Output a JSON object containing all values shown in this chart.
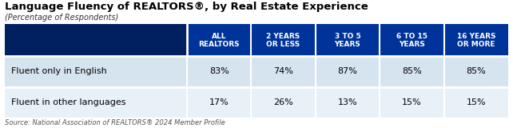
{
  "title": "Language Fluency of REALTORS®, by Real Estate Experience",
  "subtitle": "(Percentage of Respondents)",
  "source": "Source: National Association of REALTORS® 2024 Member Profile",
  "col_headers": [
    [
      "ALL",
      "REALTORS"
    ],
    [
      "2 YEARS",
      "OR LESS"
    ],
    [
      "3 TO 5",
      "YEARS"
    ],
    [
      "6 TO 15",
      "YEARS"
    ],
    [
      "16 YEARS",
      "OR MORE"
    ]
  ],
  "row_labels": [
    "Fluent only in English",
    "Fluent in other languages"
  ],
  "data": [
    [
      "83%",
      "74%",
      "87%",
      "85%",
      "85%"
    ],
    [
      "17%",
      "26%",
      "13%",
      "15%",
      "15%"
    ]
  ],
  "header_bg_left": "#002060",
  "header_bg_right": "#003399",
  "header_text": "#ffffff",
  "row0_bg": "#d6e4f0",
  "row1_bg": "#e8f1f8",
  "border_color": "#ffffff",
  "title_color": "#000000",
  "label_text_color": "#000000",
  "data_text_color": "#000000",
  "source_color": "#555555",
  "fig_w": 6.42,
  "fig_h": 1.6,
  "dpi": 100
}
